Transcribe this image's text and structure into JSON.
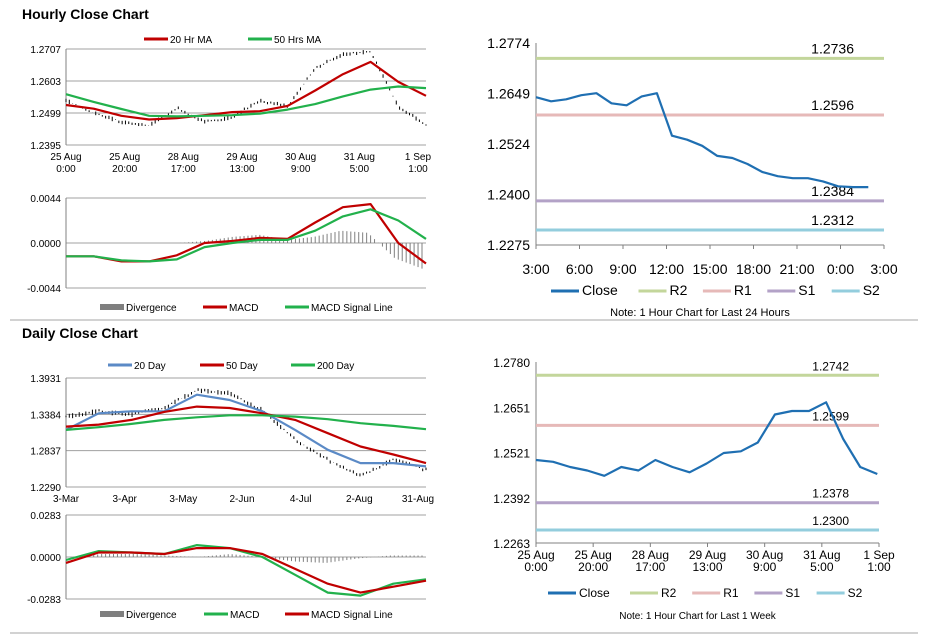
{
  "colors": {
    "dark_red": "#C00000",
    "green": "#22B14C",
    "steel_blue": "#5B8AC6",
    "blue": "#1F6FB2",
    "r2": "#C3D69B",
    "r1": "#E6B9B8",
    "s1": "#B3A2C7",
    "s2": "#93CDDD",
    "divergence": "#7F7F7F"
  },
  "sections": {
    "hourly_title": "Hourly Close Chart",
    "daily_title": "Daily Close Chart"
  },
  "chart_data": [
    {
      "id": "hourly_price",
      "type": "line",
      "series": [
        {
          "name": "20 Hr MA",
          "color": "#C00000",
          "values": [
            1.2525,
            1.2513,
            1.249,
            1.2478,
            1.2482,
            1.2492,
            1.2502,
            1.2505,
            1.2522,
            1.2572,
            1.2625,
            1.2665,
            1.26,
            1.2555
          ]
        },
        {
          "name": "50 Hrs MA",
          "color": "#22B14C",
          "values": [
            1.256,
            1.2535,
            1.2512,
            1.249,
            1.2488,
            1.249,
            1.2492,
            1.2497,
            1.251,
            1.2528,
            1.2553,
            1.2575,
            1.2585,
            1.258
          ]
        }
      ],
      "close_values": [
        1.254,
        1.25,
        1.247,
        1.2458,
        1.2515,
        1.247,
        1.2485,
        1.254,
        1.252,
        1.2645,
        1.269,
        1.27,
        1.252,
        1.246
      ],
      "x_tick_labels": [
        "25 Aug\n0:00",
        "25 Aug\n20:00",
        "28 Aug\n17:00",
        "29 Aug\n13:00",
        "30 Aug\n9:00",
        "31 Aug\n5:00",
        "1 Sep\n1:00"
      ],
      "y_ticks": [
        "1.2707",
        "1.2603",
        "1.2499",
        "1.2395"
      ],
      "ylim": [
        1.2395,
        1.2707
      ]
    },
    {
      "id": "hourly_macd",
      "type": "line",
      "series": [
        {
          "name": "Divergence",
          "color": "#7F7F7F",
          "values": [
            0,
            0,
            0,
            0,
            0,
            0.0002,
            0.0006,
            0.0008,
            0.0003,
            0.0006,
            0.0012,
            0.001,
            -0.0015,
            -0.0025
          ]
        },
        {
          "name": "MACD",
          "color": "#C00000",
          "values": [
            -0.0013,
            -0.0013,
            -0.0018,
            -0.0018,
            -0.0012,
            0.0,
            0.0002,
            0.0005,
            0.0004,
            0.002,
            0.0035,
            0.0038,
            0.0,
            -0.002
          ]
        },
        {
          "name": "MACD Signal Line",
          "color": "#22B14C",
          "values": [
            -0.0013,
            -0.0013,
            -0.0017,
            -0.0018,
            -0.0016,
            -0.0004,
            0.0,
            0.0003,
            0.0003,
            0.0012,
            0.0026,
            0.0033,
            0.0022,
            0.0004
          ]
        }
      ],
      "y_ticks": [
        "0.0044",
        "0.0000",
        "-0.0044"
      ],
      "ylim": [
        -0.0044,
        0.0044
      ]
    },
    {
      "id": "hourly_24h",
      "type": "line",
      "series": [
        {
          "name": "Close",
          "color": "#1F6FB2",
          "values": [
            1.264,
            1.263,
            1.2635,
            1.2645,
            1.265,
            1.2625,
            1.262,
            1.2642,
            1.265,
            1.2545,
            1.2535,
            1.252,
            1.2495,
            1.249,
            1.2475,
            1.2455,
            1.2445,
            1.244,
            1.244,
            1.2432,
            1.242,
            1.2418,
            1.2418
          ]
        },
        {
          "name": "R2",
          "color": "#C3D69B",
          "level": 1.2736,
          "label": "1.2736"
        },
        {
          "name": "R1",
          "color": "#E6B9B8",
          "level": 1.2596,
          "label": "1.2596"
        },
        {
          "name": "S1",
          "color": "#B3A2C7",
          "level": 1.2384,
          "label": "1.2384"
        },
        {
          "name": "S2",
          "color": "#93CDDD",
          "level": 1.2312,
          "label": "1.2312"
        }
      ],
      "x_tick_labels": [
        "3:00",
        "6:00",
        "9:00",
        "12:00",
        "15:00",
        "18:00",
        "21:00",
        "0:00",
        "3:00"
      ],
      "y_ticks": [
        "1.2774",
        "1.2649",
        "1.2524",
        "1.2400",
        "1.2275"
      ],
      "ylim": [
        1.2275,
        1.2774
      ],
      "note": "Note: 1 Hour Chart for Last 24 Hours"
    },
    {
      "id": "daily_price",
      "type": "line",
      "series": [
        {
          "name": "20 Day",
          "color": "#5B8AC6",
          "values": [
            1.315,
            1.34,
            1.343,
            1.343,
            1.368,
            1.36,
            1.343,
            1.315,
            1.285,
            1.265,
            1.265,
            1.26
          ]
        },
        {
          "name": "50 Day",
          "color": "#C00000",
          "values": [
            1.32,
            1.323,
            1.33,
            1.342,
            1.35,
            1.348,
            1.34,
            1.33,
            1.31,
            1.29,
            1.278,
            1.265
          ]
        },
        {
          "name": "200 Day",
          "color": "#22B14C",
          "values": [
            1.315,
            1.319,
            1.324,
            1.33,
            1.334,
            1.337,
            1.337,
            1.335,
            1.331,
            1.325,
            1.321,
            1.316
          ]
        }
      ],
      "close_values": [
        1.335,
        1.343,
        1.338,
        1.348,
        1.375,
        1.37,
        1.345,
        1.3,
        1.27,
        1.245,
        1.27,
        1.255
      ],
      "x_tick_labels": [
        "3-Mar",
        "3-Apr",
        "3-May",
        "2-Jun",
        "4-Jul",
        "2-Aug",
        "31-Aug"
      ],
      "y_ticks": [
        "1.3931",
        "1.3384",
        "1.2837",
        "1.2290"
      ],
      "ylim": [
        1.229,
        1.3931
      ]
    },
    {
      "id": "daily_macd",
      "type": "line",
      "series": [
        {
          "name": "Divergence",
          "color": "#7F7F7F",
          "values": [
            0,
            0.002,
            0.002,
            0.001,
            0,
            0.002,
            0,
            -0.003,
            -0.004,
            -0.001,
            0.001,
            0.001
          ]
        },
        {
          "name": "MACD",
          "color": "#22B14C",
          "values": [
            -0.002,
            0.004,
            0.003,
            0.002,
            0.008,
            0.006,
            0.0,
            -0.012,
            -0.024,
            -0.026,
            -0.018,
            -0.015
          ]
        },
        {
          "name": "MACD Signal Line",
          "color": "#C00000",
          "values": [
            -0.004,
            0.003,
            0.003,
            0.002,
            0.006,
            0.006,
            0.002,
            -0.008,
            -0.018,
            -0.024,
            -0.02,
            -0.016
          ]
        }
      ],
      "y_ticks": [
        "0.0283",
        "0.0000",
        "-0.0283"
      ],
      "ylim": [
        -0.0283,
        0.0283
      ]
    },
    {
      "id": "weekly",
      "type": "line",
      "series": [
        {
          "name": "Close",
          "color": "#1F6FB2",
          "values": [
            1.25,
            1.2495,
            1.248,
            1.247,
            1.2455,
            1.248,
            1.247,
            1.25,
            1.248,
            1.2465,
            1.249,
            1.252,
            1.2525,
            1.255,
            1.263,
            1.264,
            1.264,
            1.2665,
            1.256,
            1.248,
            1.246
          ]
        },
        {
          "name": "R2",
          "color": "#C3D69B",
          "level": 1.2742,
          "label": "1.2742"
        },
        {
          "name": "R1",
          "color": "#E6B9B8",
          "level": 1.2599,
          "label": "1.2599"
        },
        {
          "name": "S1",
          "color": "#B3A2C7",
          "level": 1.2378,
          "label": "1.2378"
        },
        {
          "name": "S2",
          "color": "#93CDDD",
          "level": 1.23,
          "label": "1.2300"
        }
      ],
      "x_tick_labels": [
        "25 Aug\n0:00",
        "25 Aug\n20:00",
        "28 Aug\n17:00",
        "29 Aug\n13:00",
        "30 Aug\n9:00",
        "31 Aug\n5:00",
        "1 Sep\n1:00"
      ],
      "y_ticks": [
        "1.2780",
        "1.2651",
        "1.2521",
        "1.2392",
        "1.2263"
      ],
      "ylim": [
        1.2263,
        1.278
      ],
      "note": "Note: 1 Hour Chart for  Last 1 Week"
    }
  ]
}
